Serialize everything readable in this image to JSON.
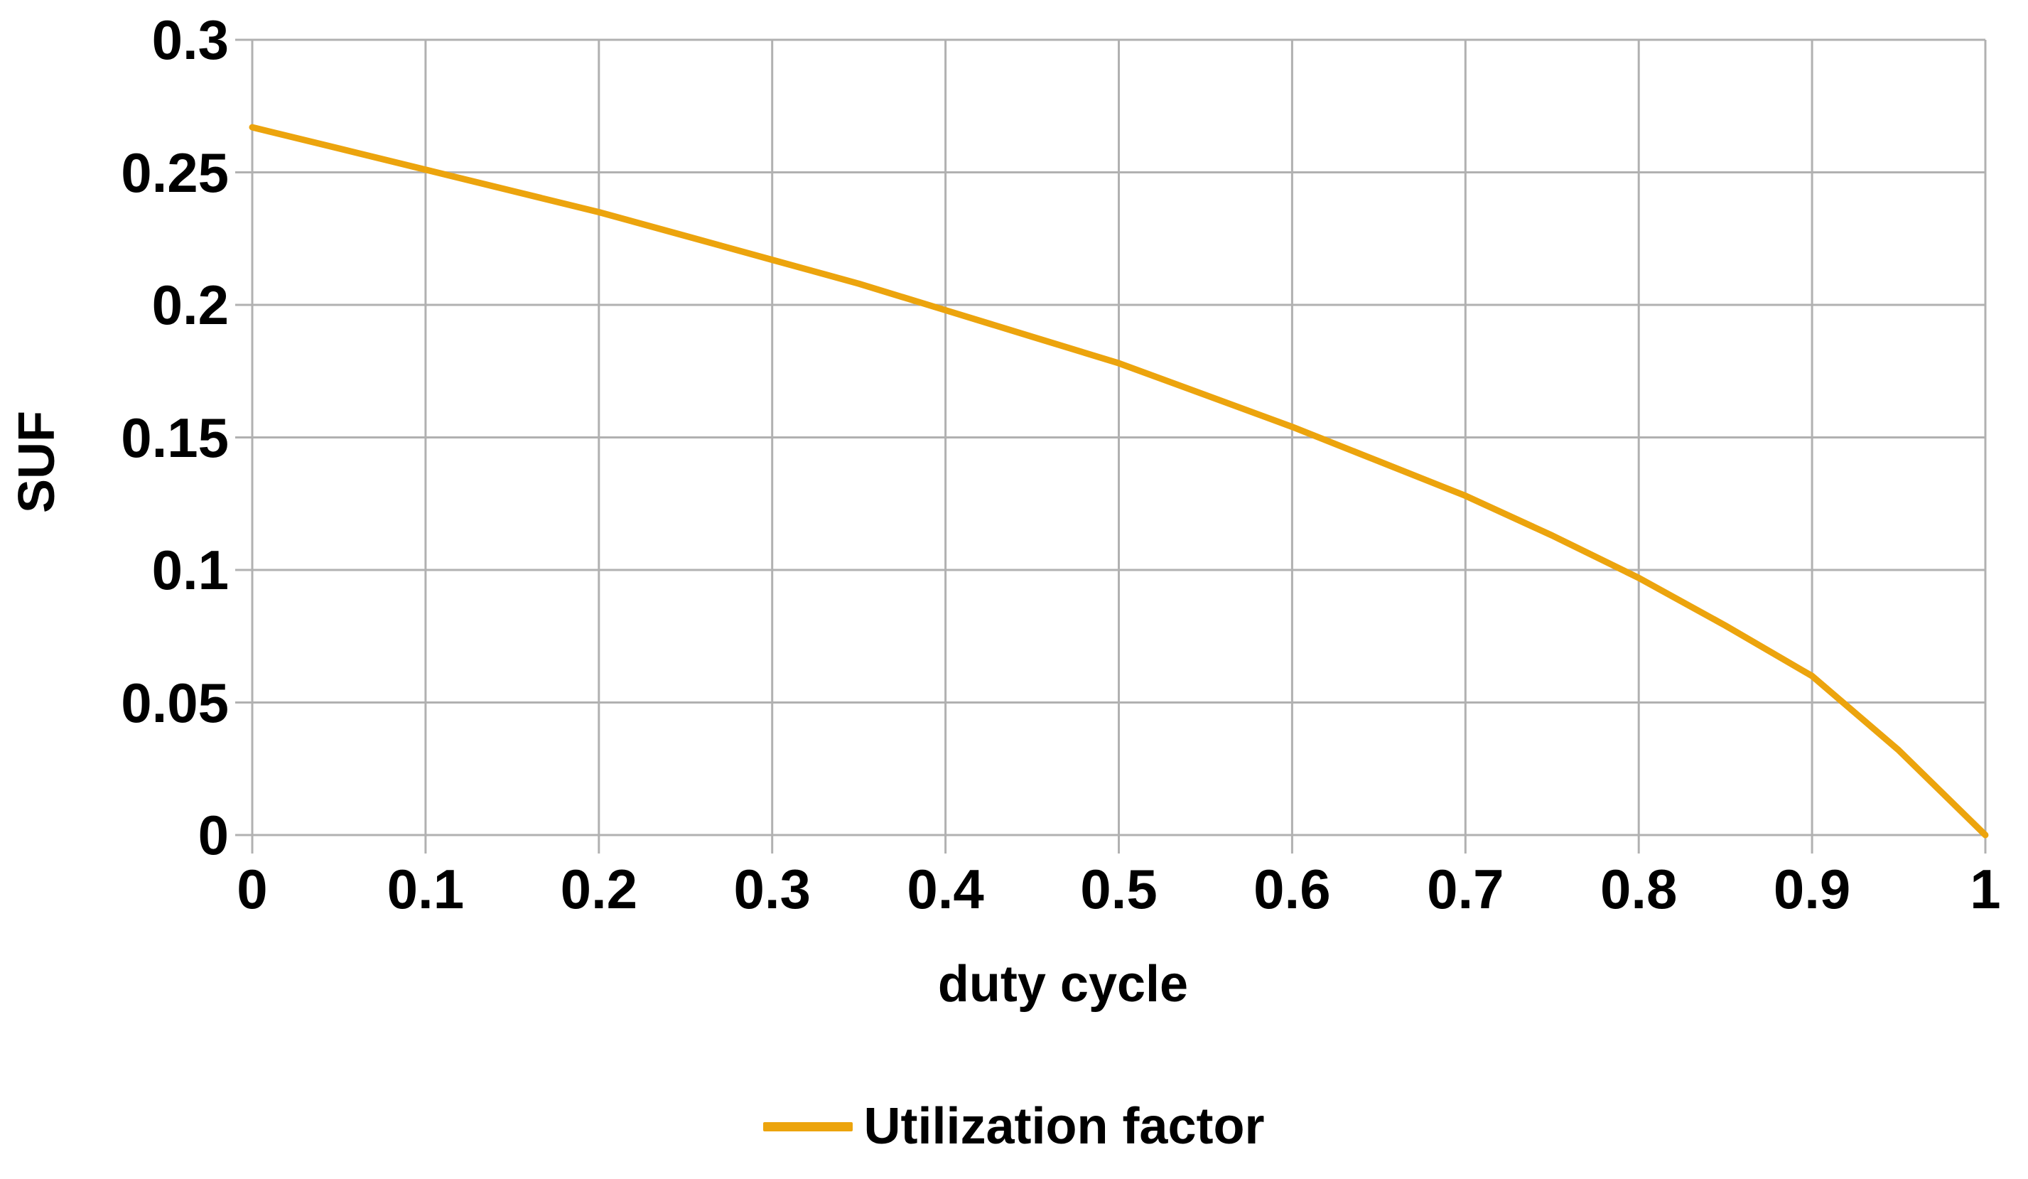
{
  "chart_data": {
    "type": "line",
    "title": "",
    "xlabel": "duty cycle",
    "ylabel": "SUF",
    "xlim": [
      0,
      1
    ],
    "ylim": [
      0,
      0.3
    ],
    "x_ticks": [
      0,
      0.1,
      0.2,
      0.3,
      0.4,
      0.5,
      0.6,
      0.7,
      0.8,
      0.9,
      1
    ],
    "x_tick_labels": [
      "0",
      "0.1",
      "0.2",
      "0.3",
      "0.4",
      "0.5",
      "0.6",
      "0.7",
      "0.8",
      "0.9",
      "1"
    ],
    "y_ticks": [
      0,
      0.05,
      0.1,
      0.15,
      0.2,
      0.25,
      0.3
    ],
    "y_tick_labels": [
      "0",
      "0.05",
      "0.1",
      "0.15",
      "0.2",
      "0.25",
      "0.3"
    ],
    "grid": true,
    "legend_position": "bottom-center",
    "series": [
      {
        "name": "Utilization factor",
        "color": "#ECA40D",
        "x": [
          0,
          0.05,
          0.1,
          0.15,
          0.2,
          0.25,
          0.3,
          0.35,
          0.4,
          0.45,
          0.5,
          0.55,
          0.6,
          0.65,
          0.7,
          0.75,
          0.8,
          0.85,
          0.9,
          0.95,
          1
        ],
        "y": [
          0.267,
          0.259,
          0.251,
          0.243,
          0.235,
          0.226,
          0.217,
          0.208,
          0.198,
          0.188,
          0.178,
          0.166,
          0.154,
          0.141,
          0.128,
          0.113,
          0.097,
          0.079,
          0.06,
          0.032,
          0
        ]
      }
    ]
  },
  "colors": {
    "background": "#ffffff",
    "gridline": "#b1b1b1",
    "text": "#000000",
    "series": "#ECA40D"
  }
}
